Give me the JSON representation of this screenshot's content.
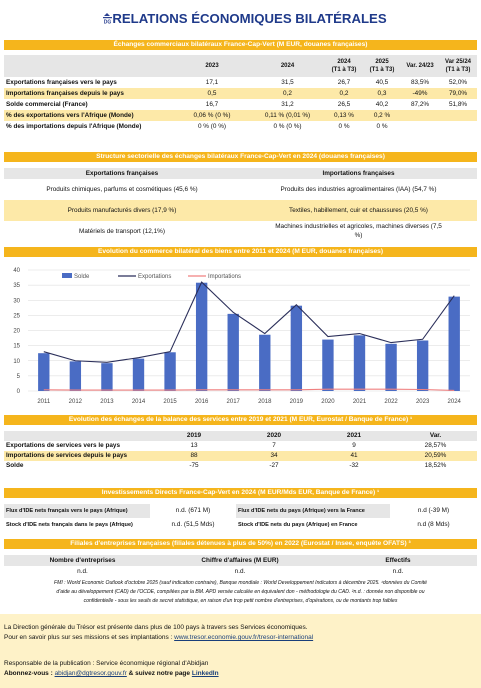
{
  "header": {
    "logo_text": "DG",
    "title": "RELATIONS ÉCONOMIQUES BILATÉRALES"
  },
  "trade": {
    "band": "Échanges commerciaux bilatéraux France-Cap-Vert (M EUR, douanes françaises)",
    "cols": [
      "2023",
      "2024",
      "2024 (T1 à T3)",
      "2025 (T1 à T3)",
      "Var. 24/23",
      "Var 25/24 (T1 à T3)"
    ],
    "col_lines": [
      [
        "2023"
      ],
      [
        "2024"
      ],
      [
        "2024",
        "(T1 à T3)"
      ],
      [
        "2025",
        "(T1 à T3)"
      ],
      [
        "Var. 24/23"
      ],
      [
        "Var 25/24",
        "(T1 à T3)"
      ]
    ],
    "rows": [
      {
        "label": "Exportations françaises vers le pays",
        "vals": [
          "17,1",
          "31,5",
          "26,7",
          "40,5",
          "83,5%",
          "52,0%"
        ]
      },
      {
        "label": "Importations françaises depuis le pays",
        "vals": [
          "0,5",
          "0,2",
          "0,2",
          "0,3",
          "-49%",
          "79,0%"
        ]
      },
      {
        "label": "Solde commercial (France)",
        "vals": [
          "16,7",
          "31,2",
          "26,5",
          "40,2",
          "87,2%",
          "51,8%"
        ]
      },
      {
        "label": "% des exportations vers l'Afrique (Monde)",
        "vals": [
          "0,06 % (0 %)",
          "0,11 % (0,01 %)",
          "0,13 %",
          "0,2 %",
          "",
          ""
        ]
      },
      {
        "label": "% des importations depuis l'Afrique (Monde)",
        "vals": [
          "0 % (0 %)",
          "0 % (0 %)",
          "0 %",
          "0 %",
          "",
          ""
        ]
      }
    ]
  },
  "sector": {
    "band": "Structure sectorielle des échanges bilatéraux France-Cap-Vert en 2024 (douanes françaises)",
    "head": [
      "Exportations françaises",
      "Importations françaises"
    ],
    "rows": [
      [
        "Produits chimiques, parfums et cosmétiques (45,6 %)",
        "Produits des industries agroalimentaires (IAA) (54,7 %)"
      ],
      [
        "Produits manufacturés divers (17,9 %)",
        "Textiles, habillement, cuir et chaussures (20,5 %)"
      ],
      [
        "Matériels de transport (12,1%)",
        "Machines industrielles et agricoles, machines diverses (7,5 %)"
      ]
    ],
    "row3_right_lines": [
      "Machines industrielles et agricoles, machines diverses (7,5",
      "%)"
    ]
  },
  "chart_band": "Evolution du commerce bilatéral des biens entre 2011 et 2024 (M EUR, douanes françaises)",
  "chart_data": {
    "type": "bar",
    "title": "Evolution du commerce bilatéral des biens entre 2011 et 2024 (M EUR, douanes françaises)",
    "categories": [
      "2011",
      "2012",
      "2013",
      "2014",
      "2015",
      "2016",
      "2017",
      "2018",
      "2019",
      "2020",
      "2021",
      "2022",
      "2023",
      "2024"
    ],
    "series": [
      {
        "name": "Solde",
        "kind": "bar",
        "color": "#4a6cc4",
        "values": [
          12.5,
          9.8,
          9.2,
          10.7,
          12.8,
          35.8,
          25.5,
          18.6,
          28.2,
          17.0,
          18.4,
          15.6,
          16.7,
          31.2
        ]
      },
      {
        "name": "Exportations",
        "kind": "line",
        "color": "#2b2f5a",
        "values": [
          13,
          10,
          9.5,
          11,
          13,
          36,
          26,
          19,
          28.5,
          18,
          19,
          16,
          17.1,
          31.5
        ]
      },
      {
        "name": "Importations",
        "kind": "line",
        "color": "#f08080",
        "values": [
          0.4,
          0.3,
          0.3,
          0.3,
          0.3,
          0.4,
          0.4,
          0.4,
          0.4,
          0.6,
          0.6,
          0.6,
          0.5,
          0.2
        ]
      }
    ],
    "ylim": [
      0,
      40
    ],
    "yticks": [
      "0",
      "5",
      "10",
      "15",
      "20",
      "25",
      "30",
      "35",
      "40"
    ],
    "grid": true,
    "legend": "top-left"
  },
  "services": {
    "band": "Evolution des échanges de la balance des services entre 2019 et 2021 (M EUR, Eurostat / Banque de France) ¹",
    "cols": [
      "2019",
      "2020",
      "2021",
      "Var."
    ],
    "rows": [
      {
        "label": "Exportations de services vers le pays",
        "vals": [
          "13",
          "7",
          "9",
          "28,57%"
        ]
      },
      {
        "label": "Importations de services depuis le pays",
        "vals": [
          "88",
          "34",
          "41",
          "20,59%"
        ]
      },
      {
        "label": "Solde",
        "vals": [
          "-75",
          "-27",
          "-32",
          "18,52%"
        ]
      }
    ]
  },
  "ide": {
    "band": "Investissements Directs France-Cap-Vert en 2024 (M EUR/Mds EUR, Banque de France) ¹",
    "rows": [
      [
        "Flux d'IDE nets français vers le pays (Afrique)",
        "n.d. (671 M)",
        "Flux d'IDE nets du pays (Afrique) vers la France",
        "n.d (-39 M)"
      ],
      [
        "Stock d'IDE nets français dans le pays (Afrique)",
        "n.d. (51,5 Mds)",
        "Stock d'IDE nets du pays (Afrique) en France",
        "n.d (8 Mds)"
      ]
    ]
  },
  "filiales": {
    "band": "Filiales d'entreprises françaises (filiales détenues à plus de 50%) en 2022 (Eurostat / Insee, enquête OFATS) ³",
    "head": [
      "Nombre d'entreprises",
      "Chiffre d'affaires (M EUR)",
      "Effectifs"
    ],
    "vals": [
      "n.d.",
      "n.d.",
      "n.d."
    ]
  },
  "notes": [
    "FMI : World Economic Outlook d'octobre 2025 (sauf indication contraire), Banque mondiale : World Developpement Indicators à décembre 2025. ¹données du Comité",
    "d'aide au développement (CAD) de l'OCDE, compilées par la BM. APD versée calculée en équivalent don - méthodologie du CAD. ²n.d. : donnée non disponible ou",
    "confidentielle - sous les seuils de secret statistique, en raison d'un trop petit nombre d'entreprises, d'opérations, ou de montants trop faibles"
  ],
  "footer": {
    "line1": "La Direction générale du Trésor est présente dans plus de 100 pays à travers ses Services économiques.",
    "line2_pre": "Pour en savoir plus sur ses missions et ses implantations : ",
    "line2_link": "www.tresor.economie.gouv.fr/tresor-international",
    "line3": "Responsable de la publication : Service économique régional d'Abidjan",
    "line4_bold": "Abonnez-vous : ",
    "line4_mail": "abidjan@dgtresor.gouv.fr",
    "line4_mid": " & suivez notre page ",
    "line4_link": "LinkedIn"
  }
}
